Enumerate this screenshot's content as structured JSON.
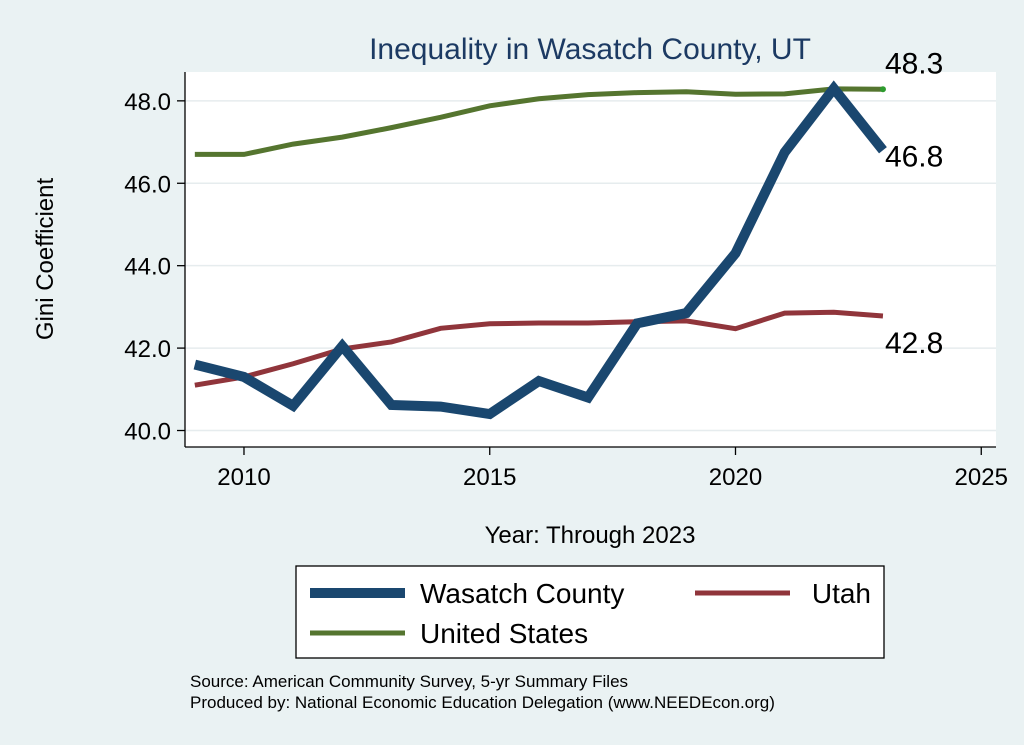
{
  "chart_data": {
    "type": "line",
    "title": "Inequality in Wasatch County, UT",
    "xlabel": "Year: Through 2023",
    "ylabel": "Gini Coefficient",
    "xlim": [
      2008.8,
      2025.3
    ],
    "ylim": [
      39.6,
      48.7
    ],
    "x_ticks": [
      2010,
      2015,
      2020,
      2025
    ],
    "y_ticks": [
      40.0,
      42.0,
      44.0,
      46.0,
      48.0
    ],
    "y_tick_labels": [
      "40.0",
      "42.0",
      "44.0",
      "46.0",
      "48.0"
    ],
    "grid": true,
    "legend_position": "bottom",
    "x": [
      2009,
      2010,
      2011,
      2012,
      2013,
      2014,
      2015,
      2016,
      2017,
      2018,
      2019,
      2020,
      2021,
      2022,
      2023
    ],
    "series": [
      {
        "name": "Wasatch County",
        "color": "#1a476f",
        "values": [
          41.6,
          41.3,
          40.6,
          42.05,
          40.62,
          40.58,
          40.4,
          41.2,
          40.8,
          42.6,
          42.85,
          44.3,
          46.75,
          48.3,
          46.8
        ],
        "end_label": "46.8"
      },
      {
        "name": "Utah",
        "color": "#90353b",
        "values": [
          41.1,
          41.3,
          41.62,
          41.98,
          42.15,
          42.48,
          42.59,
          42.61,
          42.61,
          42.64,
          42.66,
          42.47,
          42.85,
          42.87,
          42.78
        ],
        "end_label": "42.8"
      },
      {
        "name": "United States",
        "color": "#55752f",
        "values": [
          46.7,
          46.7,
          46.95,
          47.12,
          47.35,
          47.6,
          47.88,
          48.05,
          48.15,
          48.2,
          48.22,
          48.16,
          48.17,
          48.29,
          48.28
        ],
        "end_label": "48.3"
      }
    ],
    "legend": [
      "Wasatch County",
      "Utah",
      "United States"
    ],
    "source_lines": [
      "Source: American Community Survey, 5-yr Summary Files",
      "Produced by: National Economic Education Delegation (www.NEEDEcon.org)"
    ]
  }
}
